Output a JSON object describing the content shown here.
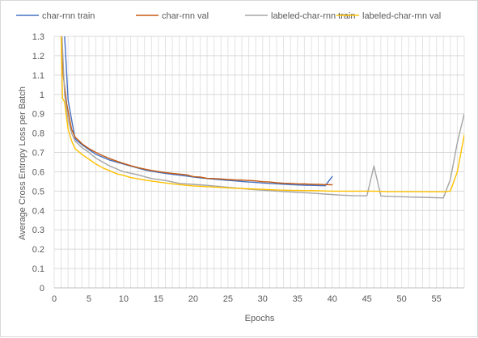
{
  "chart_data": {
    "type": "line",
    "title": "",
    "xlabel": "Epochs",
    "ylabel": "Average Cross Entropy Loss per Batch",
    "xlim": [
      0,
      59
    ],
    "ylim": [
      0,
      1.3
    ],
    "x_ticks": [
      "0",
      "5",
      "10",
      "15",
      "20",
      "25",
      "30",
      "35",
      "40",
      "45",
      "50",
      "55"
    ],
    "y_ticks": [
      "0",
      "0.1",
      "0.2",
      "0.3",
      "0.4",
      "0.5",
      "0.6",
      "0.7",
      "0.8",
      "0.9",
      "1",
      "1.1",
      "1.2",
      "1.3"
    ],
    "grid": true,
    "legend_position": "top",
    "series": [
      {
        "name": "char-rnn train",
        "color": "#4472c4",
        "x": [
          1,
          1.5,
          2,
          3,
          4,
          5,
          6,
          7,
          8,
          9,
          10,
          11,
          12,
          13,
          14,
          15,
          16,
          17,
          18,
          19,
          20,
          21,
          22,
          23,
          24,
          25,
          26,
          27,
          28,
          29,
          30,
          31,
          32,
          33,
          34,
          35,
          36,
          37,
          38,
          39,
          40
        ],
        "values": [
          1.5,
          1.3,
          0.97,
          0.77,
          0.74,
          0.715,
          0.69,
          0.675,
          0.66,
          0.65,
          0.64,
          0.63,
          0.62,
          0.61,
          0.603,
          0.597,
          0.592,
          0.587,
          0.583,
          0.578,
          0.573,
          0.569,
          0.565,
          0.562,
          0.559,
          0.556,
          0.553,
          0.55,
          0.547,
          0.545,
          0.542,
          0.54,
          0.538,
          0.536,
          0.534,
          0.532,
          0.531,
          0.53,
          0.529,
          0.528,
          0.575
        ]
      },
      {
        "name": "char-rnn val",
        "color": "#c55a11",
        "x": [
          1,
          1.3,
          1.8,
          2.5,
          3,
          4,
          5,
          6,
          7,
          8,
          9,
          10,
          11,
          12,
          13,
          14,
          15,
          16,
          17,
          18,
          19,
          20,
          21,
          22,
          23,
          24,
          25,
          26,
          27,
          28,
          29,
          30,
          31,
          32,
          33,
          34,
          35,
          36,
          37,
          38,
          39,
          40
        ],
        "values": [
          1.3,
          1.1,
          0.95,
          0.82,
          0.78,
          0.745,
          0.72,
          0.7,
          0.683,
          0.668,
          0.655,
          0.643,
          0.632,
          0.622,
          0.614,
          0.607,
          0.601,
          0.596,
          0.592,
          0.588,
          0.585,
          0.575,
          0.573,
          0.566,
          0.565,
          0.563,
          0.56,
          0.558,
          0.557,
          0.555,
          0.553,
          0.549,
          0.547,
          0.544,
          0.541,
          0.54,
          0.538,
          0.537,
          0.536,
          0.535,
          0.534,
          0.533
        ]
      },
      {
        "name": "labeled-char-rnn train",
        "color": "#a5a5a5",
        "x": [
          1,
          1.5,
          2,
          2.5,
          3,
          4,
          5,
          6,
          7,
          8,
          9,
          10,
          12,
          14,
          16,
          18,
          20,
          22,
          25,
          28,
          30,
          33,
          36,
          39,
          41,
          43,
          45,
          46,
          47,
          49,
          51,
          53,
          55,
          56,
          57,
          58,
          59
        ],
        "values": [
          1.4,
          1.0,
          0.87,
          0.8,
          0.76,
          0.725,
          0.7,
          0.67,
          0.65,
          0.63,
          0.615,
          0.6,
          0.585,
          0.565,
          0.555,
          0.54,
          0.535,
          0.53,
          0.52,
          0.51,
          0.505,
          0.498,
          0.492,
          0.485,
          0.48,
          0.477,
          0.476,
          0.63,
          0.475,
          0.472,
          0.47,
          0.468,
          0.466,
          0.465,
          0.56,
          0.75,
          0.9
        ]
      },
      {
        "name": "labeled-char-rnn val",
        "color": "#ffc000",
        "x": [
          1,
          1.2,
          1.5,
          2,
          2.5,
          3,
          4,
          5,
          6,
          7,
          8,
          9,
          10,
          11,
          12,
          13,
          14,
          15,
          16,
          17,
          18,
          19,
          20,
          22,
          24,
          26,
          28,
          30,
          32,
          34,
          36,
          38,
          40,
          42,
          44,
          45,
          46,
          48,
          50,
          52,
          54,
          56,
          57,
          58,
          59
        ],
        "values": [
          1.3,
          0.98,
          0.96,
          0.82,
          0.76,
          0.72,
          0.69,
          0.665,
          0.64,
          0.62,
          0.605,
          0.59,
          0.582,
          0.57,
          0.564,
          0.558,
          0.552,
          0.547,
          0.542,
          0.538,
          0.534,
          0.53,
          0.527,
          0.523,
          0.519,
          0.515,
          0.512,
          0.509,
          0.506,
          0.504,
          0.503,
          0.502,
          0.5,
          0.5,
          0.5,
          0.5,
          0.5,
          0.498,
          0.498,
          0.498,
          0.497,
          0.497,
          0.5,
          0.6,
          0.79
        ]
      }
    ]
  }
}
